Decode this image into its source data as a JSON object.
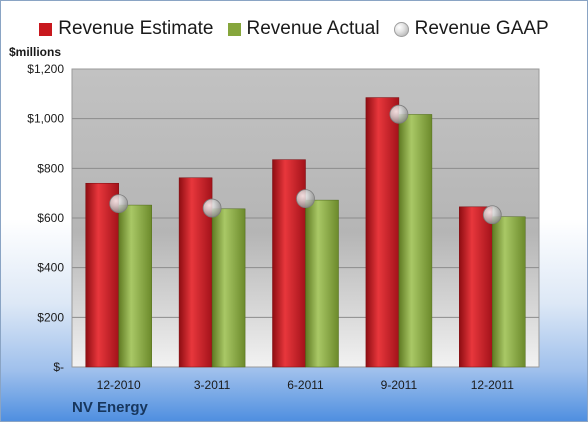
{
  "chart_data": {
    "type": "bar",
    "title": "",
    "ylabel": "$millions",
    "xlabel": "",
    "categories": [
      "12-2010",
      "3-2011",
      "6-2011",
      "9-2011",
      "12-2011"
    ],
    "series": [
      {
        "name": "Revenue Estimate",
        "type": "bar",
        "color": "#c8181e",
        "values": [
          740,
          762,
          835,
          1085,
          645
        ]
      },
      {
        "name": "Revenue Actual",
        "type": "bar",
        "color": "#86a63c",
        "values": [
          652,
          637,
          672,
          1017,
          605
        ]
      },
      {
        "name": "Revenue GAAP",
        "type": "marker",
        "color": "#c8c8c8",
        "values": [
          658,
          640,
          678,
          1018,
          613
        ]
      }
    ],
    "ylim": [
      0,
      1200
    ],
    "yticks": [
      0,
      200,
      400,
      600,
      800,
      1000,
      1200
    ],
    "ytick_labels": [
      "$-",
      "$200",
      "$400",
      "$600",
      "$800",
      "$1,000",
      "$1,200"
    ],
    "grid": true,
    "legend_position": "top",
    "footer": "NV Energy"
  }
}
